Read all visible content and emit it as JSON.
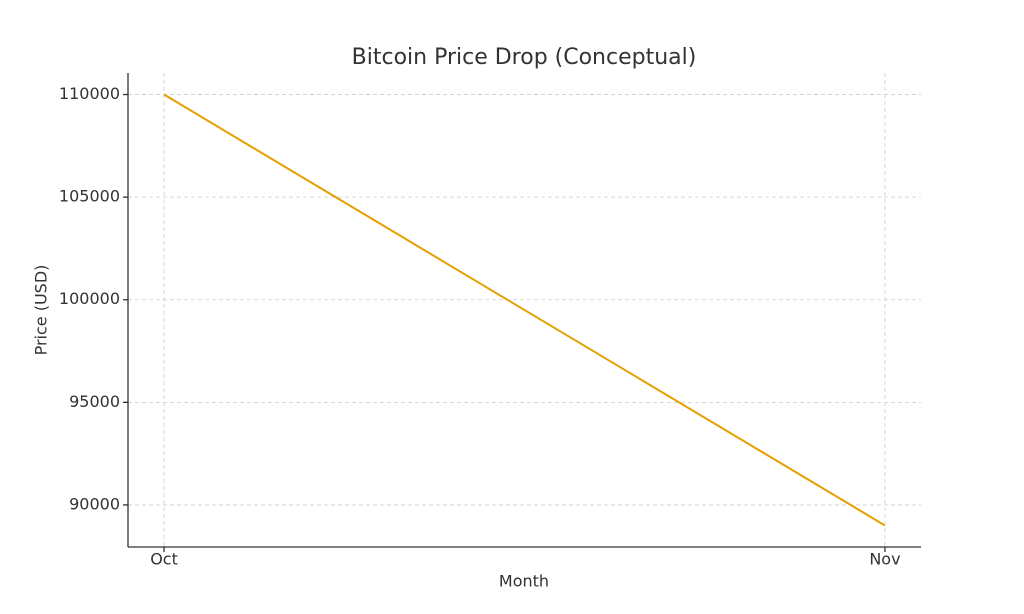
{
  "chart_data": {
    "type": "line",
    "title": "Bitcoin Price Drop (Conceptual)",
    "x_label": "Month",
    "y_label": "Price (USD)",
    "categories": [
      "Oct",
      "Nov"
    ],
    "values": [
      110000,
      89000
    ],
    "color": "#e69f00",
    "ylim": [
      87950,
      111050
    ],
    "yticks": [
      90000,
      95000,
      100000,
      105000,
      110000
    ],
    "grid": true
  }
}
